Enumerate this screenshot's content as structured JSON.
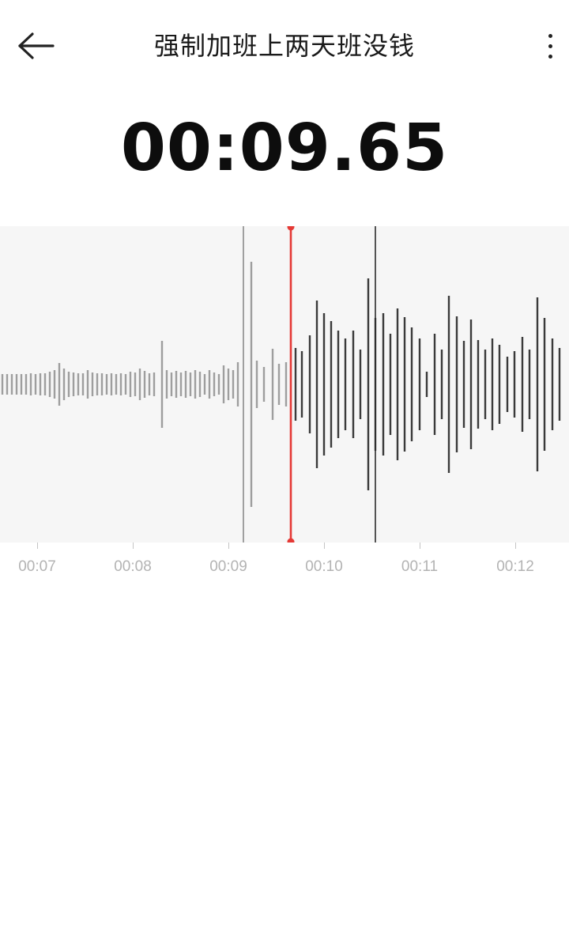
{
  "header": {
    "back_icon": "arrow-left-icon",
    "title": "强制加班上两天班没钱",
    "more_icon": "more-vertical-icon"
  },
  "recording": {
    "elapsed_time": "00:09.65"
  },
  "timeline": {
    "tick_labels": [
      "00:07",
      "00:08",
      "00:09",
      "00:10",
      "00:11",
      "00:12"
    ],
    "playhead_color": "#e53935",
    "bar_color_played": "#9e9e9e",
    "bar_color_unplayed": "#3a3a3a"
  }
}
